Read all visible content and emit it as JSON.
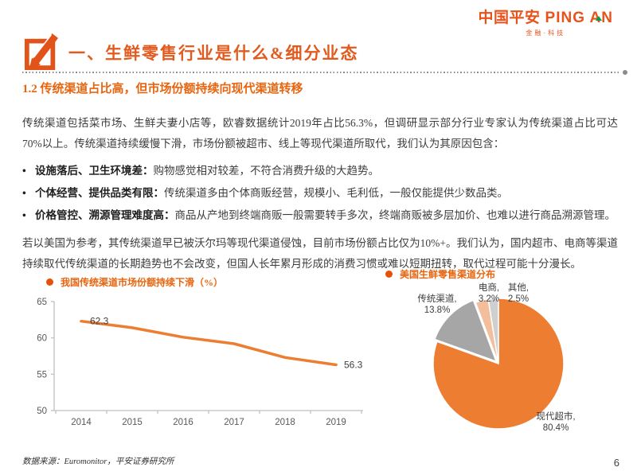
{
  "header": {
    "logo": {
      "zh": "中国平安",
      "en": "PING AN",
      "tagline": "金融·科技"
    }
  },
  "section": {
    "title": "一、生鲜零售行业是什么&细分业态"
  },
  "subtitle": "1.2 传统渠道占比高，但市场份额持续向现代渠道转移",
  "body": {
    "paragraph1": "传统渠道包括菜市场、生鲜夫妻小店等，欧睿数据统计2019年占比56.3%，但调研显示部分行业专家认为传统渠道占比可达70%以上。传统渠道持续缓慢下滑，市场份额被超市、线上等现代渠道所取代，我们认为其原因包含：",
    "bullets": [
      {
        "lead": "设施落后、卫生环境差：",
        "text": "购物感觉相对较差，不符合消费升级的大趋势。"
      },
      {
        "lead": "个体经营、提供品类有限：",
        "text": "传统渠道多由个体商贩经营，规模小、毛利低，一般仅能提供少数品类。"
      },
      {
        "lead": "价格管控、溯源管理难度高：",
        "text": "商品从产地到终端商贩一般需要转手多次，终端商贩被多层加价、也难以进行商品溯源管理。"
      }
    ],
    "paragraph2": "若以美国为参考，其传统渠道早已被沃尔玛等现代渠道侵蚀，目前市场份额占比仅为10%+。我们认为，国内超市、电商等渠道持续取代传统渠道的长期趋势也不会改变，但国人长年累月形成的消费习惯或难以短期扭转，取代过程可能十分漫长。"
  },
  "chart_data": [
    {
      "type": "line",
      "title": "我国传统渠道市场份额持续下滑（%）",
      "x": [
        2014,
        2015,
        2016,
        2017,
        2018,
        2019
      ],
      "values": [
        62.3,
        61.4,
        60.1,
        59.2,
        57.3,
        56.3
      ],
      "ylim": [
        50,
        65
      ],
      "yticks": [
        50,
        55,
        60,
        65
      ],
      "data_labels": {
        "first": "62.3",
        "last": "56.3"
      },
      "line_color": "#ED7D31",
      "axis_color": "#c0c0c0",
      "tick_label_color": "#595959",
      "grid": false,
      "legend_position": "title-top-left"
    },
    {
      "type": "pie",
      "title": "美国生鲜零售渠道分布",
      "slices": [
        {
          "label": "现代超市",
          "value": 80.4,
          "color": "#ED7D31",
          "exploded": false
        },
        {
          "label": "传统渠道",
          "value": 13.8,
          "color": "#A6A6A6",
          "exploded": true
        },
        {
          "label": "电商",
          "value": 3.2,
          "color": "#F3BE9B",
          "exploded": false
        },
        {
          "label": "其他",
          "value": 2.5,
          "color": "#CFCFCF",
          "exploded": false
        }
      ],
      "start_angle_deg": 0,
      "direction": "clockwise",
      "label_color": "#3d3d3d"
    }
  ],
  "footer": {
    "source": "数据来源：Euromonitor，平安证券研究所",
    "page": "6"
  }
}
